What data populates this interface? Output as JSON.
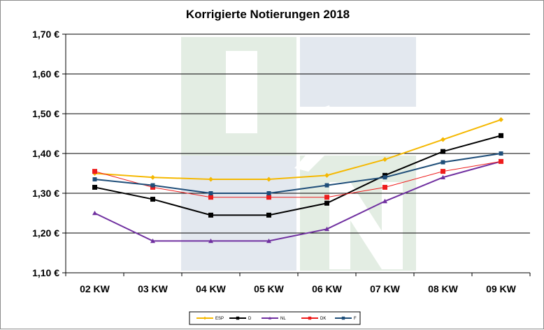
{
  "chart_data": {
    "type": "line",
    "title": "Korrigierte Notierungen 2018",
    "categories": [
      "02 KW",
      "03 KW",
      "04 KW",
      "05 KW",
      "06 KW",
      "07 KW",
      "08 KW",
      "09 KW"
    ],
    "ylim": [
      1.1,
      1.7
    ],
    "yticks": [
      "1,10 €",
      "1,20 €",
      "1,30 €",
      "1,40 €",
      "1,50 €",
      "1,60 €",
      "1,70 €"
    ],
    "grid": true,
    "legend_position": "bottom",
    "watermark": "ISN",
    "series": [
      {
        "name": "ESP",
        "color": "#f5b800",
        "marker": "diamond",
        "values": [
          1.35,
          1.34,
          1.335,
          1.335,
          1.345,
          1.385,
          1.435,
          1.485
        ]
      },
      {
        "name": "D",
        "color": "#000000",
        "marker": "square",
        "values": [
          1.315,
          1.285,
          1.245,
          1.245,
          1.275,
          1.345,
          1.405,
          1.445
        ]
      },
      {
        "name": "NL",
        "color": "#7030a0",
        "marker": "triangle",
        "values": [
          1.25,
          1.18,
          1.18,
          1.18,
          1.21,
          1.28,
          1.34,
          1.38
        ]
      },
      {
        "name": "DK",
        "color": "#ee1c1c",
        "marker": "square",
        "values": [
          1.355,
          1.315,
          1.29,
          1.29,
          1.29,
          1.315,
          1.355,
          1.38
        ]
      },
      {
        "name": "F",
        "color": "#1f4e79",
        "marker": "square",
        "values": [
          1.335,
          1.32,
          1.3,
          1.3,
          1.32,
          1.34,
          1.378,
          1.4
        ]
      }
    ]
  }
}
